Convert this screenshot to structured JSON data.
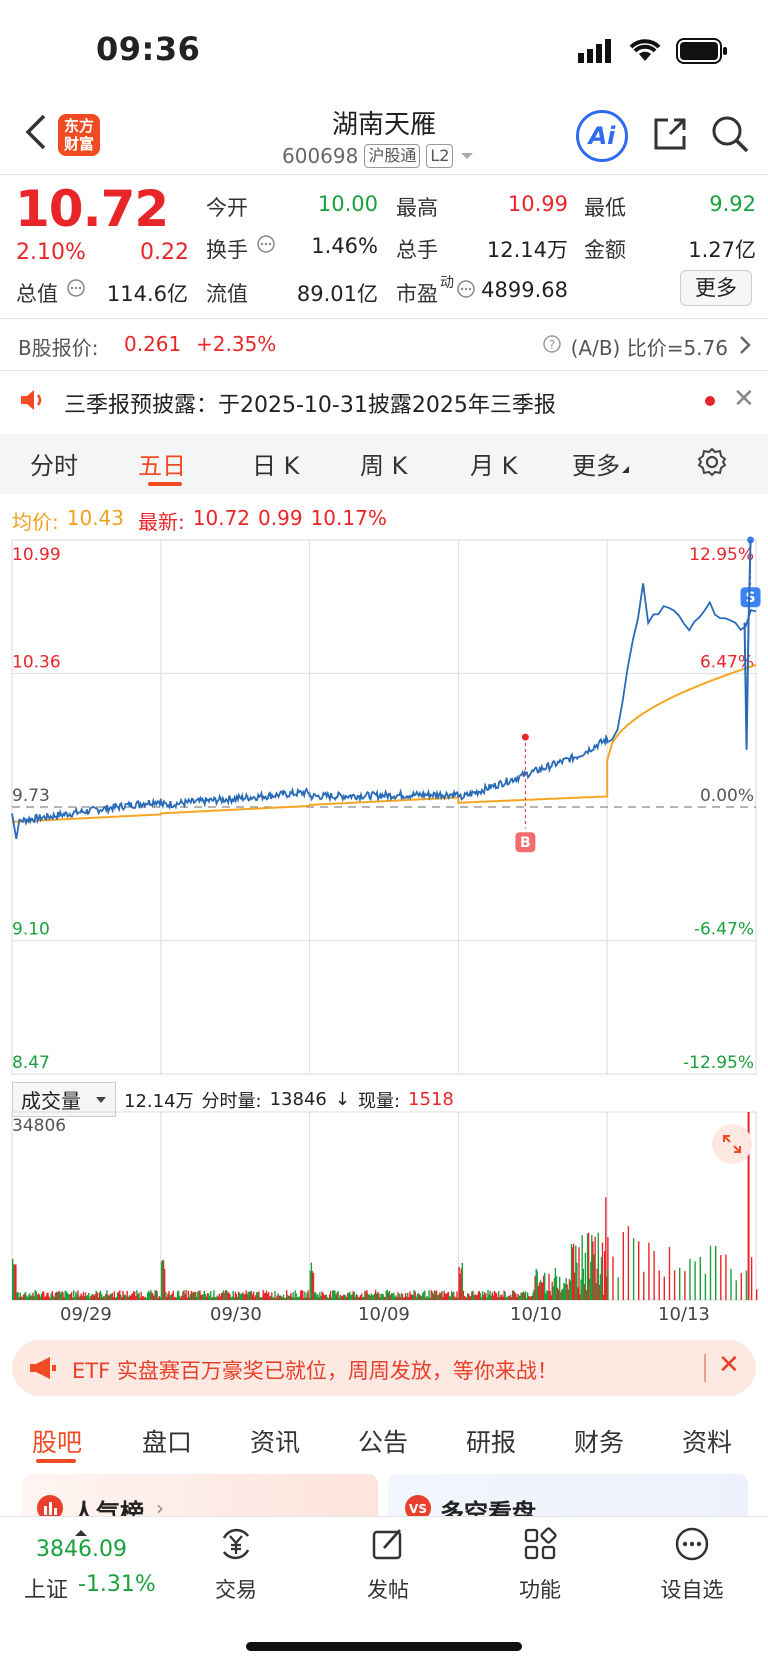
{
  "status": {
    "time": "09:36"
  },
  "header": {
    "logo_line1": "东方",
    "logo_line2": "财富",
    "name": "湖南天雁",
    "code": "600698",
    "tag1": "沪股通",
    "tag2": "L2",
    "ai_label": "Ai"
  },
  "quote": {
    "price": "10.72",
    "change_pct": "2.10%",
    "change_abs": "0.22",
    "open_label": "今开",
    "open": "10.00",
    "high_label": "最高",
    "high": "10.99",
    "low_label": "最低",
    "low": "9.92",
    "turnover_label": "换手",
    "turnover": "1.46%",
    "volume_label": "总手",
    "volume": "12.14万",
    "amount_label": "金额",
    "amount": "1.27亿",
    "mktcap_label": "总值",
    "mktcap": "114.6亿",
    "float_label": "流值",
    "float": "89.01亿",
    "pe_label": "市盈",
    "pe_sup": "动",
    "pe": "4899.68",
    "more": "更多"
  },
  "bshare": {
    "label": "B股报价:",
    "price": "0.261",
    "pct": "+2.35%",
    "ratio": "(A/B) 比价=5.76"
  },
  "notice": {
    "text": "三季报预披露：于2025-10-31披露2025年三季报"
  },
  "chart_tabs": [
    "分时",
    "五日",
    "日 K",
    "周 K",
    "月 K",
    "更多"
  ],
  "legend": {
    "avg_label": "均价:",
    "avg": "10.43",
    "last_label": "最新:",
    "last": "10.72",
    "chg": "0.99",
    "pct": "10.17%"
  },
  "chart_data": {
    "type": "line",
    "title": "",
    "y_left_ticks": [
      "10.99",
      "10.36",
      "9.73",
      "9.10",
      "8.47"
    ],
    "y_right_ticks": [
      "12.95%",
      "6.47%",
      "0.00%",
      "-6.47%",
      "-12.95%"
    ],
    "prev_close": 9.73,
    "ylim": [
      8.47,
      10.99
    ],
    "x_dates": [
      "09/29",
      "09/30",
      "10/09",
      "10/10",
      "10/13"
    ],
    "series": [],
    "markers": [
      {
        "label": "B",
        "day": 4
      },
      {
        "label": "S",
        "day": 5
      }
    ],
    "volume": {
      "selector": "成交量",
      "total": "12.14万",
      "period_label": "分时量:",
      "period": "13846",
      "now_label": "现量:",
      "now": "1518",
      "max_label": "34806"
    }
  },
  "promo": {
    "text": "ETF 实盘赛百万豪奖已就位，周周发放，等你来战！"
  },
  "bottom_tabs": [
    "股吧",
    "盘口",
    "资讯",
    "公告",
    "研报",
    "财务",
    "资料"
  ],
  "peek": {
    "left": "人气榜",
    "right": "多空看盘"
  },
  "nav": {
    "index_value": "3846.09",
    "index_name": "上证",
    "index_chg": "-1.31%",
    "items": [
      "交易",
      "发帖",
      "功能",
      "设自选"
    ]
  }
}
